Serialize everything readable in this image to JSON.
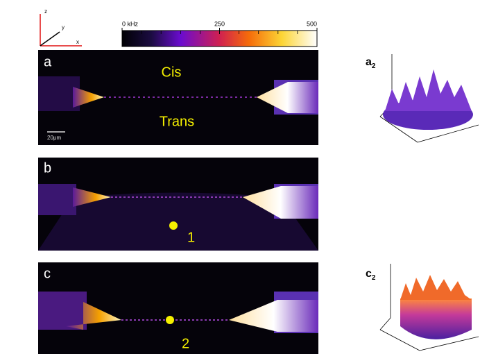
{
  "axes_icon": {
    "z": "z",
    "y": "y",
    "x": "x"
  },
  "colorbar": {
    "range": [
      0,
      500
    ],
    "ticks": [
      {
        "value": 0,
        "label": "0 kHz"
      },
      250,
      500
    ]
  },
  "panels": [
    {
      "label": "a",
      "cis": "Cis",
      "trans": "Trans",
      "scale_bar": "20μm"
    },
    {
      "label": "b",
      "point": "1"
    },
    {
      "label": "c",
      "point": "2"
    }
  ],
  "insets": [
    {
      "letter": "a",
      "sub": "2"
    },
    {
      "letter": "c",
      "sub": "2"
    }
  ]
}
